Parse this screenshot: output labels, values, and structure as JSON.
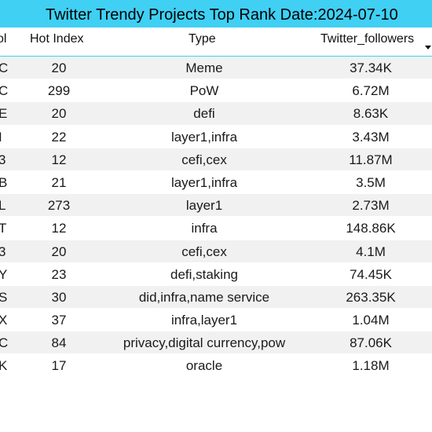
{
  "title": "Twitter Trendy Projects Top Rank Date:2024-07-10",
  "headers": {
    "symbol": "ol",
    "hot_index": "Hot Index",
    "type": "Type",
    "followers": "Twitter_followers"
  },
  "colors": {
    "title_background": "#3fd0f4",
    "row_striped": "#f1f1f1",
    "row_plain": "#ffffff"
  },
  "rows": [
    {
      "symbol": "C",
      "hot_index": "20",
      "type": "Meme",
      "followers": "37.34K"
    },
    {
      "symbol": "C",
      "hot_index": "299",
      "type": "PoW",
      "followers": "6.72M"
    },
    {
      "symbol": "E",
      "hot_index": "20",
      "type": "defi",
      "followers": "8.63K"
    },
    {
      "symbol": "I",
      "hot_index": "22",
      "type": "layer1,infra",
      "followers": "3.43M"
    },
    {
      "symbol": "3",
      "hot_index": "12",
      "type": "cefi,cex",
      "followers": "11.87M"
    },
    {
      "symbol": "B",
      "hot_index": "21",
      "type": "layer1,infra",
      "followers": "3.5M"
    },
    {
      "symbol": "L",
      "hot_index": "273",
      "type": "layer1",
      "followers": "2.73M"
    },
    {
      "symbol": "T",
      "hot_index": "12",
      "type": "infra",
      "followers": "148.86K"
    },
    {
      "symbol": "3",
      "hot_index": "20",
      "type": "cefi,cex",
      "followers": "4.1M"
    },
    {
      "symbol": "Y",
      "hot_index": "23",
      "type": "defi,staking",
      "followers": "74.45K"
    },
    {
      "symbol": "S",
      "hot_index": "30",
      "type": "did,infra,name service",
      "followers": "263.35K"
    },
    {
      "symbol": "X",
      "hot_index": "37",
      "type": "infra,layer1",
      "followers": "1.04M"
    },
    {
      "symbol": "C",
      "hot_index": "84",
      "type": "privacy,digital currency,pow",
      "followers": "87.06K"
    },
    {
      "symbol": "K",
      "hot_index": "17",
      "type": "oracle",
      "followers": "1.18M"
    }
  ]
}
